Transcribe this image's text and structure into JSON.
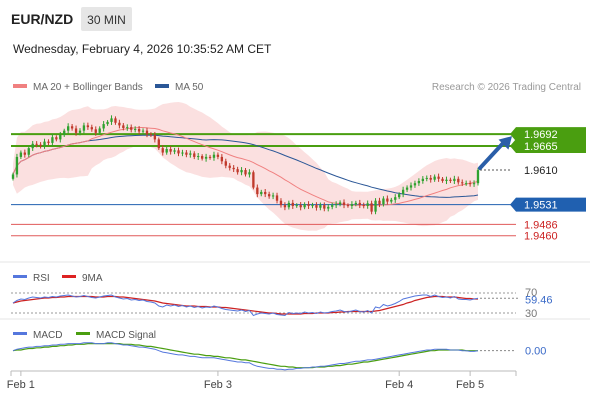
{
  "header": {
    "pair": "EUR/NZD",
    "timeframe": "30 MIN",
    "datetime": "Wednesday, February 4, 2026 10:35:52 AM CET"
  },
  "legend": {
    "ma20": "MA 20 + Bollinger Bands",
    "ma50": "MA 50",
    "copyright": "Research © 2026 Trading Central"
  },
  "colors": {
    "candle_up": "#2ea12e",
    "candle_down": "#c0392b",
    "ma20": "#f08080",
    "ma50": "#2b5797",
    "bollinger": "#f9d6d6",
    "resistance": "#4a9e10",
    "pivot": "#2060b0",
    "support": "#e05a5a",
    "rsi": "#5577dd",
    "macd": "#5577dd",
    "signal": "#4a9e10"
  },
  "chart_data": [
    {
      "type": "candlestick",
      "ylim": [
        1.94,
        1.977
      ],
      "x_ticks": [
        {
          "label": "Feb 1",
          "index": 2
        },
        {
          "label": "Feb 3",
          "index": 52
        },
        {
          "label": "Feb 4",
          "index": 98
        },
        {
          "label": "Feb 5",
          "index": 116
        }
      ],
      "close": [
        1.96,
        1.964,
        1.965,
        1.9645,
        1.966,
        1.967,
        1.9668,
        1.9665,
        1.9675,
        1.9672,
        1.9685,
        1.968,
        1.969,
        1.97,
        1.971,
        1.9705,
        1.9695,
        1.97,
        1.9712,
        1.9708,
        1.9703,
        1.9695,
        1.9705,
        1.9715,
        1.972,
        1.9728,
        1.9718,
        1.9712,
        1.9706,
        1.9708,
        1.9702,
        1.9704,
        1.9698,
        1.97,
        1.9692,
        1.969,
        1.968,
        1.966,
        1.965,
        1.9658,
        1.9652,
        1.9655,
        1.9648,
        1.965,
        1.9645,
        1.9648,
        1.964,
        1.9642,
        1.9636,
        1.964,
        1.9638,
        1.9645,
        1.964,
        1.963,
        1.962,
        1.9615,
        1.9612,
        1.9605,
        1.961,
        1.96,
        1.9605,
        1.957,
        1.9555,
        1.956,
        1.9555,
        1.955,
        1.9552,
        1.954,
        1.953,
        1.9525,
        1.9535,
        1.9528,
        1.953,
        1.9525,
        1.9532,
        1.9528,
        1.953,
        1.9524,
        1.953,
        1.9522,
        1.9526,
        1.953,
        1.9532,
        1.9536,
        1.953,
        1.9528,
        1.9532,
        1.9535,
        1.953,
        1.9528,
        1.9534,
        1.9515,
        1.954,
        1.9532,
        1.9545,
        1.9538,
        1.9542,
        1.9548,
        1.9555,
        1.9565,
        1.957,
        1.9575,
        1.958,
        1.9585,
        1.959,
        1.9592,
        1.9588,
        1.9595,
        1.959,
        1.9585,
        1.9588,
        1.9585,
        1.959,
        1.9582,
        1.958,
        1.958,
        1.9578,
        1.958,
        1.961
      ],
      "ma20_end": 1.9568,
      "ma50_end": 1.9545,
      "levels": [
        {
          "value": 1.9692,
          "label": "1.9692",
          "kind": "resistance"
        },
        {
          "value": 1.9665,
          "label": "1.9665",
          "kind": "resistance"
        },
        {
          "value": 1.961,
          "label": "1.9610",
          "kind": "last"
        },
        {
          "value": 1.9531,
          "label": "1.9531",
          "kind": "pivot"
        },
        {
          "value": 1.9486,
          "label": "1.9486",
          "kind": "support"
        },
        {
          "value": 1.946,
          "label": "1.9460",
          "kind": "support"
        }
      ],
      "arrow_target": 1.9692
    },
    {
      "type": "line",
      "name": "RSI",
      "legend": [
        "RSI",
        "9MA"
      ],
      "ylim": [
        20,
        80
      ],
      "y_ticks": [
        "70",
        "30"
      ],
      "last_value": "59.46",
      "rsi": [
        50,
        55,
        58,
        57,
        60,
        62,
        61,
        60,
        62,
        61,
        63,
        62,
        64,
        65,
        66,
        64,
        62,
        63,
        65,
        63,
        61,
        60,
        62,
        64,
        65,
        66,
        62,
        60,
        58,
        59,
        56,
        57,
        55,
        56,
        53,
        52,
        50,
        44,
        42,
        46,
        44,
        46,
        43,
        45,
        42,
        44,
        41,
        43,
        40,
        42,
        41,
        44,
        42,
        39,
        37,
        36,
        35,
        34,
        36,
        33,
        35,
        25,
        28,
        30,
        29,
        28,
        30,
        27,
        26,
        25,
        31,
        29,
        30,
        29,
        32,
        30,
        31,
        29,
        32,
        30,
        31,
        33,
        34,
        36,
        33,
        32,
        34,
        36,
        33,
        32,
        35,
        30,
        42,
        40,
        47,
        44,
        46,
        49,
        53,
        58,
        60,
        62,
        64,
        65,
        66,
        66,
        63,
        66,
        63,
        61,
        62,
        60,
        63,
        58,
        57,
        57,
        56,
        58,
        59.46
      ],
      "ma9": [
        50,
        52,
        54,
        55,
        56,
        57,
        58,
        59,
        60,
        60,
        61,
        61,
        62,
        62,
        63,
        63,
        63,
        63,
        63,
        63,
        63,
        62,
        62,
        62,
        63,
        63,
        63,
        62,
        62,
        61,
        60,
        59,
        58,
        57,
        56,
        55,
        54,
        52,
        50,
        49,
        48,
        47,
        46,
        45,
        44,
        44,
        44,
        43,
        43,
        43,
        42,
        42,
        42,
        41,
        41,
        40,
        39,
        38,
        37,
        36,
        35,
        34,
        33,
        32,
        31,
        30,
        30,
        29,
        28,
        28,
        28,
        28,
        28,
        28,
        29,
        29,
        29,
        30,
        30,
        30,
        30,
        31,
        31,
        32,
        32,
        33,
        33,
        33,
        33,
        33,
        33,
        33,
        34,
        35,
        37,
        39,
        41,
        43,
        45,
        47,
        50,
        52,
        55,
        57,
        59,
        61,
        62,
        63,
        63,
        63,
        62,
        62,
        62,
        61,
        60,
        59,
        59,
        58,
        58
      ]
    },
    {
      "type": "line",
      "name": "MACD",
      "legend": [
        "MACD",
        "MACD Signal"
      ],
      "ylim": [
        -0.003,
        0.0015
      ],
      "last_value": "0.00",
      "macd": [
        0.0,
        0.0002,
        0.0003,
        0.0004,
        0.0005,
        0.0005,
        0.0006,
        0.0006,
        0.0007,
        0.0007,
        0.0008,
        0.0008,
        0.0009,
        0.0009,
        0.001,
        0.001,
        0.001,
        0.001,
        0.0011,
        0.0011,
        0.0011,
        0.001,
        0.001,
        0.001,
        0.0011,
        0.0011,
        0.001,
        0.0009,
        0.0008,
        0.0008,
        0.0007,
        0.0006,
        0.0005,
        0.0005,
        0.0004,
        0.0003,
        0.0002,
        0.0,
        -0.0002,
        -0.0003,
        -0.0004,
        -0.0005,
        -0.0006,
        -0.0006,
        -0.0007,
        -0.0008,
        -0.0008,
        -0.0009,
        -0.001,
        -0.001,
        -0.001,
        -0.001,
        -0.0011,
        -0.0012,
        -0.0013,
        -0.0014,
        -0.0015,
        -0.0016,
        -0.0016,
        -0.0017,
        -0.0017,
        -0.002,
        -0.0022,
        -0.0023,
        -0.0024,
        -0.0025,
        -0.0025,
        -0.0026,
        -0.0026,
        -0.0027,
        -0.0026,
        -0.0026,
        -0.0025,
        -0.0025,
        -0.0024,
        -0.0024,
        -0.0023,
        -0.0023,
        -0.0022,
        -0.0022,
        -0.0021,
        -0.002,
        -0.0019,
        -0.0018,
        -0.0018,
        -0.0017,
        -0.0016,
        -0.0015,
        -0.0015,
        -0.0014,
        -0.0013,
        -0.0013,
        -0.0012,
        -0.0011,
        -0.001,
        -0.0009,
        -0.0008,
        -0.0007,
        -0.0006,
        -0.0005,
        -0.0004,
        -0.0003,
        -0.0002,
        -0.0001,
        0.0,
        0.0001,
        0.0001,
        0.0002,
        0.0002,
        0.0002,
        0.0002,
        0.0001,
        0.0001,
        0.0001,
        0.0,
        0.0,
        -0.0001,
        -0.0001,
        0.0
      ],
      "signal": [
        0.0,
        0.0001,
        0.0001,
        0.0002,
        0.0003,
        0.0003,
        0.0004,
        0.0004,
        0.0005,
        0.0005,
        0.0006,
        0.0006,
        0.0007,
        0.0007,
        0.0008,
        0.0008,
        0.0009,
        0.0009,
        0.0009,
        0.001,
        0.001,
        0.001,
        0.001,
        0.001,
        0.001,
        0.001,
        0.001,
        0.001,
        0.0009,
        0.0009,
        0.0009,
        0.0008,
        0.0008,
        0.0007,
        0.0006,
        0.0006,
        0.0005,
        0.0004,
        0.0003,
        0.0002,
        0.0001,
        0.0,
        -0.0001,
        -0.0002,
        -0.0003,
        -0.0004,
        -0.0005,
        -0.0005,
        -0.0006,
        -0.0007,
        -0.0007,
        -0.0008,
        -0.0008,
        -0.0009,
        -0.001,
        -0.001,
        -0.0011,
        -0.0012,
        -0.0013,
        -0.0013,
        -0.0014,
        -0.0015,
        -0.0016,
        -0.0017,
        -0.0018,
        -0.0019,
        -0.002,
        -0.0021,
        -0.0022,
        -0.0022,
        -0.0023,
        -0.0023,
        -0.0024,
        -0.0024,
        -0.0024,
        -0.0024,
        -0.0024,
        -0.0023,
        -0.0023,
        -0.0023,
        -0.0022,
        -0.0022,
        -0.0021,
        -0.0021,
        -0.002,
        -0.0019,
        -0.0019,
        -0.0018,
        -0.0017,
        -0.0016,
        -0.0016,
        -0.0015,
        -0.0014,
        -0.0013,
        -0.0012,
        -0.0011,
        -0.001,
        -0.0009,
        -0.0008,
        -0.0007,
        -0.0006,
        -0.0005,
        -0.0004,
        -0.0003,
        -0.0002,
        -0.0001,
        0.0,
        0.0,
        0.0001,
        0.0001,
        0.0001,
        0.0001,
        0.0001,
        0.0001,
        0.0001,
        0.0,
        0.0,
        0.0,
        0.0
      ]
    }
  ]
}
